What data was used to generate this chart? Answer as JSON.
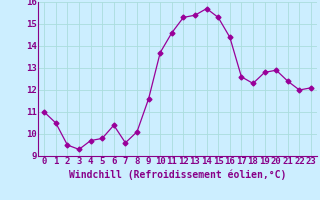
{
  "x": [
    0,
    1,
    2,
    3,
    4,
    5,
    6,
    7,
    8,
    9,
    10,
    11,
    12,
    13,
    14,
    15,
    16,
    17,
    18,
    19,
    20,
    21,
    22,
    23
  ],
  "y": [
    11.0,
    10.5,
    9.5,
    9.3,
    9.7,
    9.8,
    10.4,
    9.6,
    10.1,
    11.6,
    13.7,
    14.6,
    15.3,
    15.4,
    15.7,
    15.3,
    14.4,
    12.6,
    12.3,
    12.8,
    12.9,
    12.4,
    12.0,
    12.1
  ],
  "line_color": "#990099",
  "marker": "D",
  "marker_size": 2.5,
  "bg_color": "#cceeff",
  "grid_color": "#aadddd",
  "xlabel": "Windchill (Refroidissement éolien,°C)",
  "xlim": [
    -0.5,
    23.5
  ],
  "ylim": [
    9,
    16
  ],
  "yticks": [
    9,
    10,
    11,
    12,
    13,
    14,
    15,
    16
  ],
  "xticks": [
    0,
    1,
    2,
    3,
    4,
    5,
    6,
    7,
    8,
    9,
    10,
    11,
    12,
    13,
    14,
    15,
    16,
    17,
    18,
    19,
    20,
    21,
    22,
    23
  ],
  "xlabel_fontsize": 7.0,
  "tick_fontsize": 6.5,
  "label_color": "#880088"
}
